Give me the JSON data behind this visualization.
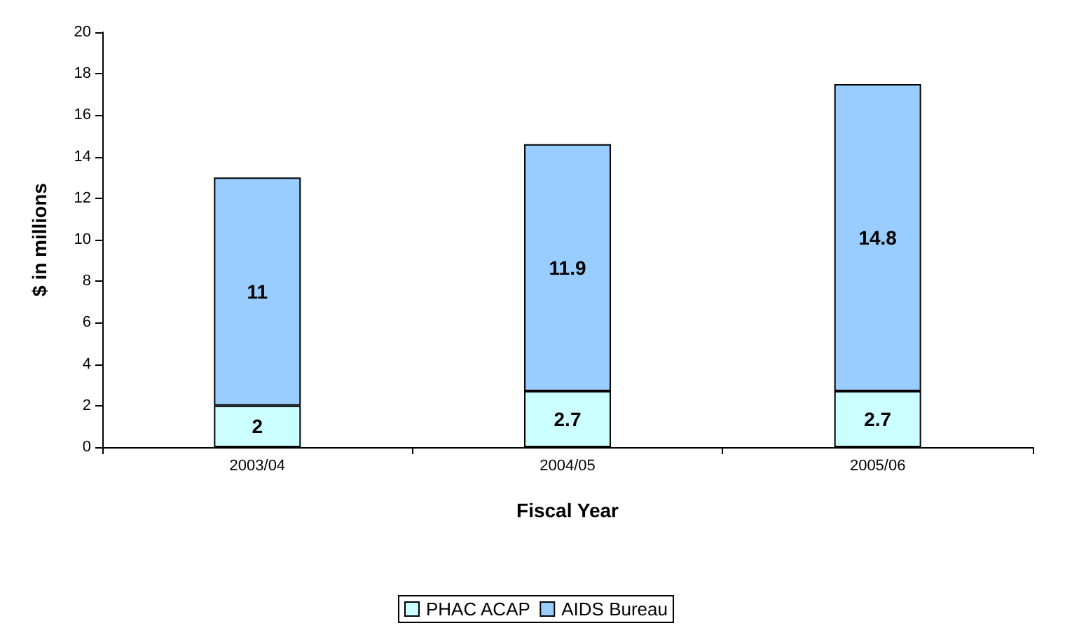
{
  "chart_data": {
    "type": "bar",
    "stacked": true,
    "xlabel": "Fiscal Year",
    "ylabel": "$ in millions",
    "categories": [
      "2003/04",
      "2004/05",
      "2005/06"
    ],
    "series": [
      {
        "name": "PHAC ACAP",
        "color": "#ccffff",
        "values": [
          2,
          2.7,
          2.7
        ]
      },
      {
        "name": "AIDS Bureau",
        "color": "#99ccff",
        "values": [
          11,
          11.9,
          14.8
        ]
      }
    ],
    "ylim": [
      0,
      20
    ],
    "yticks": [
      0,
      2,
      4,
      6,
      8,
      10,
      12,
      14,
      16,
      18,
      20
    ],
    "grid": false,
    "legend": "bottom",
    "data_labels": true
  }
}
